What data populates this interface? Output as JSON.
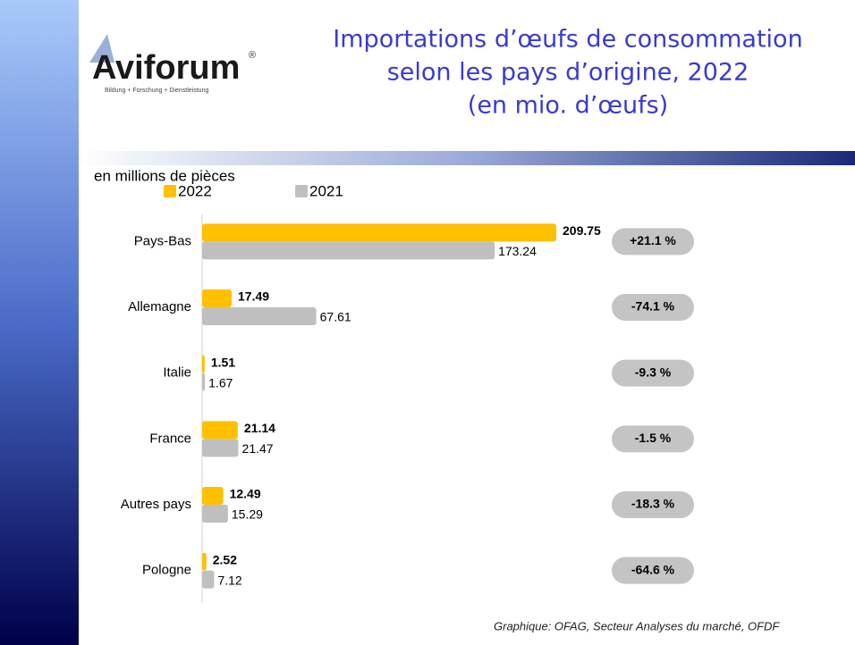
{
  "logo": {
    "name": "Aviforum",
    "registered": "®",
    "tagline": "Bildung + Forschung + Dienstleistung"
  },
  "chart_data": {
    "type": "hbar",
    "title": [
      "Importations d’œufs de consommation",
      "selon les pays d’origine, 2022",
      "(en mio. d’œufs)"
    ],
    "unit_label": "en millions de pièces",
    "categories": [
      "Pays-Bas",
      "Allemagne",
      "Italie",
      "France",
      "Autres pays",
      "Pologne"
    ],
    "series": [
      {
        "name": "2022",
        "color": "#ffc000",
        "values": [
          209.75,
          17.49,
          1.51,
          21.14,
          12.49,
          2.52
        ]
      },
      {
        "name": "2021",
        "color": "#bfbfbf",
        "values": [
          173.24,
          67.61,
          1.67,
          21.47,
          15.29,
          7.12
        ]
      }
    ],
    "changes": [
      "+21.1 %",
      "-74.1 %",
      "-9.3 %",
      "-1.5 %",
      "-18.3 %",
      "-64.6 %"
    ],
    "source": "Graphique: OFAG, Secteur Analyses du marché, OFDF"
  }
}
